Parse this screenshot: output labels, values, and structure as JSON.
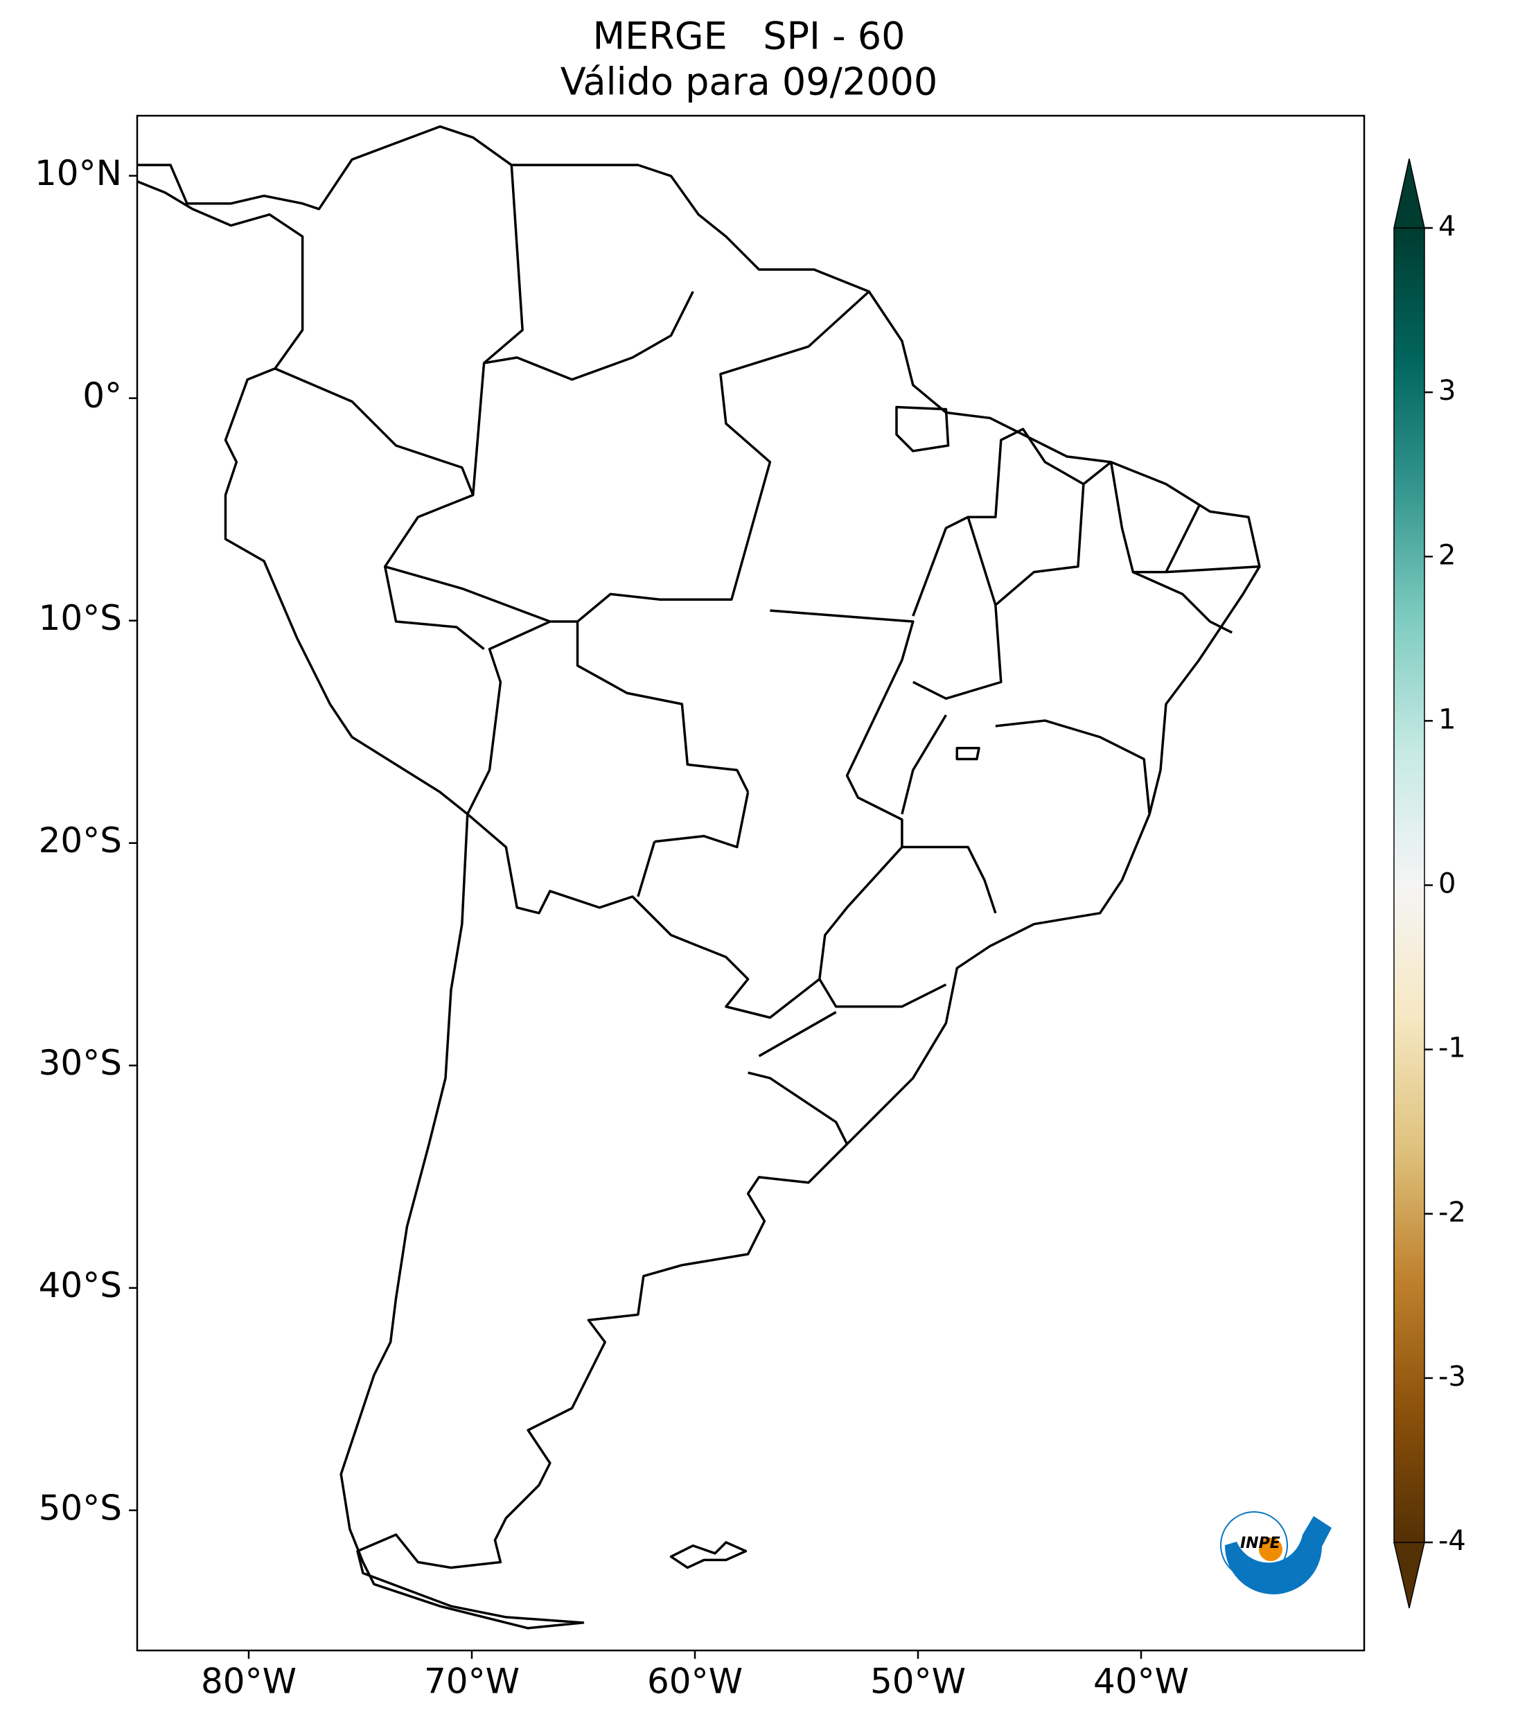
{
  "title": {
    "line1": "MERGE   SPI - 60",
    "line2": "Válido para 09/2000"
  },
  "map": {
    "xlim": [
      -85,
      -30
    ],
    "ylim": [
      -56.3,
      12.7
    ],
    "xticks": [
      {
        "value": -80,
        "label": "80°W"
      },
      {
        "value": -70,
        "label": "70°W"
      },
      {
        "value": -60,
        "label": "60°W"
      },
      {
        "value": -50,
        "label": "50°W"
      },
      {
        "value": -40,
        "label": "40°W"
      }
    ],
    "yticks": [
      {
        "value": 10,
        "label": "10°N"
      },
      {
        "value": 0,
        "label": "0°"
      },
      {
        "value": -10,
        "label": "10°S"
      },
      {
        "value": -20,
        "label": "20°S"
      },
      {
        "value": -30,
        "label": "30°S"
      },
      {
        "value": -40,
        "label": "40°S"
      },
      {
        "value": -50,
        "label": "50°S"
      }
    ]
  },
  "colorbar": {
    "lim": [
      -4,
      4
    ],
    "ticks": [
      4,
      3,
      2,
      1,
      0,
      -1,
      -2,
      -3,
      -4
    ],
    "colors": [
      "#543005",
      "#8c510a",
      "#bf812d",
      "#dfc27d",
      "#f6e8c3",
      "#f5f5f5",
      "#c7eae5",
      "#80cdc1",
      "#35978f",
      "#01665e",
      "#003c30"
    ]
  },
  "logo": {
    "text": "INPE"
  }
}
